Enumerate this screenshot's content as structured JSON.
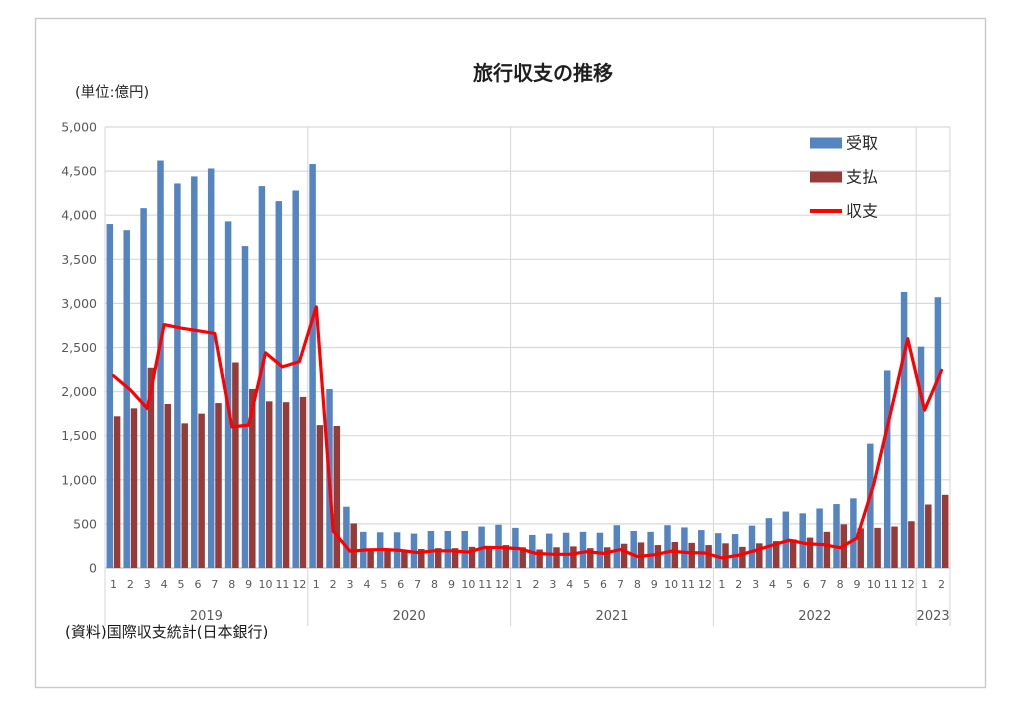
{
  "chart_data": {
    "type": "bar",
    "title": "旅行収支の推移",
    "unit_label": "(単位:億円)",
    "source": "(資料)国際収支統計(日本銀行)",
    "xlabel": "",
    "ylabel": "",
    "ylim": [
      0,
      5000
    ],
    "ytick_step": 500,
    "grid": true,
    "legend_position": "top-right",
    "year_groups": [
      {
        "label": "2019",
        "months": 12
      },
      {
        "label": "2020",
        "months": 12
      },
      {
        "label": "2021",
        "months": 12
      },
      {
        "label": "2022",
        "months": 12
      },
      {
        "label": "2023",
        "months": 2
      }
    ],
    "categories": [
      "1",
      "2",
      "3",
      "4",
      "5",
      "6",
      "7",
      "8",
      "9",
      "10",
      "11",
      "12",
      "1",
      "2",
      "3",
      "4",
      "5",
      "6",
      "7",
      "8",
      "9",
      "10",
      "11",
      "12",
      "1",
      "2",
      "3",
      "4",
      "5",
      "6",
      "7",
      "8",
      "9",
      "10",
      "11",
      "12",
      "1",
      "2",
      "3",
      "4",
      "5",
      "6",
      "7",
      "8",
      "9",
      "10",
      "11",
      "12",
      "1",
      "2"
    ],
    "series": [
      {
        "name": "受取",
        "kind": "bar",
        "color": "#5585C1",
        "values": [
          3900,
          3830,
          4080,
          4620,
          4360,
          4440,
          4530,
          3930,
          3650,
          4330,
          4160,
          4280,
          4580,
          2030,
          695,
          410,
          405,
          405,
          390,
          420,
          420,
          420,
          470,
          490,
          455,
          375,
          390,
          400,
          410,
          400,
          485,
          420,
          410,
          485,
          460,
          430,
          395,
          385,
          480,
          565,
          640,
          620,
          675,
          725,
          790,
          1410,
          2240,
          3130,
          2510,
          3070
        ]
      },
      {
        "name": "支払",
        "kind": "bar",
        "color": "#963B38",
        "values": [
          1720,
          1810,
          2270,
          1860,
          1640,
          1750,
          1870,
          2330,
          2030,
          1890,
          1880,
          1940,
          1620,
          1610,
          505,
          205,
          195,
          205,
          215,
          225,
          225,
          240,
          235,
          260,
          235,
          210,
          235,
          245,
          225,
          235,
          275,
          290,
          260,
          295,
          285,
          260,
          280,
          240,
          280,
          305,
          325,
          345,
          410,
          495,
          450,
          455,
          470,
          530,
          720,
          830
        ]
      },
      {
        "name": "収支",
        "kind": "line",
        "color": "#FF0000",
        "values": [
          2180,
          2020,
          1810,
          2760,
          2720,
          2690,
          2660,
          1600,
          1620,
          2440,
          2280,
          2340,
          2960,
          420,
          190,
          205,
          210,
          200,
          175,
          195,
          195,
          180,
          235,
          230,
          220,
          165,
          155,
          155,
          185,
          165,
          210,
          130,
          150,
          190,
          175,
          170,
          115,
          145,
          200,
          260,
          315,
          275,
          265,
          230,
          340,
          955,
          1770,
          2600,
          1790,
          2240
        ]
      }
    ],
    "style": {
      "gridline_color": "#D9D9D9",
      "axis_line_color": "#BFBFBF",
      "tick_label_color": "#595959",
      "frame_border_color": "#C9C9C9",
      "title_color": "#1F1F1F",
      "text_color": "#262626"
    }
  }
}
